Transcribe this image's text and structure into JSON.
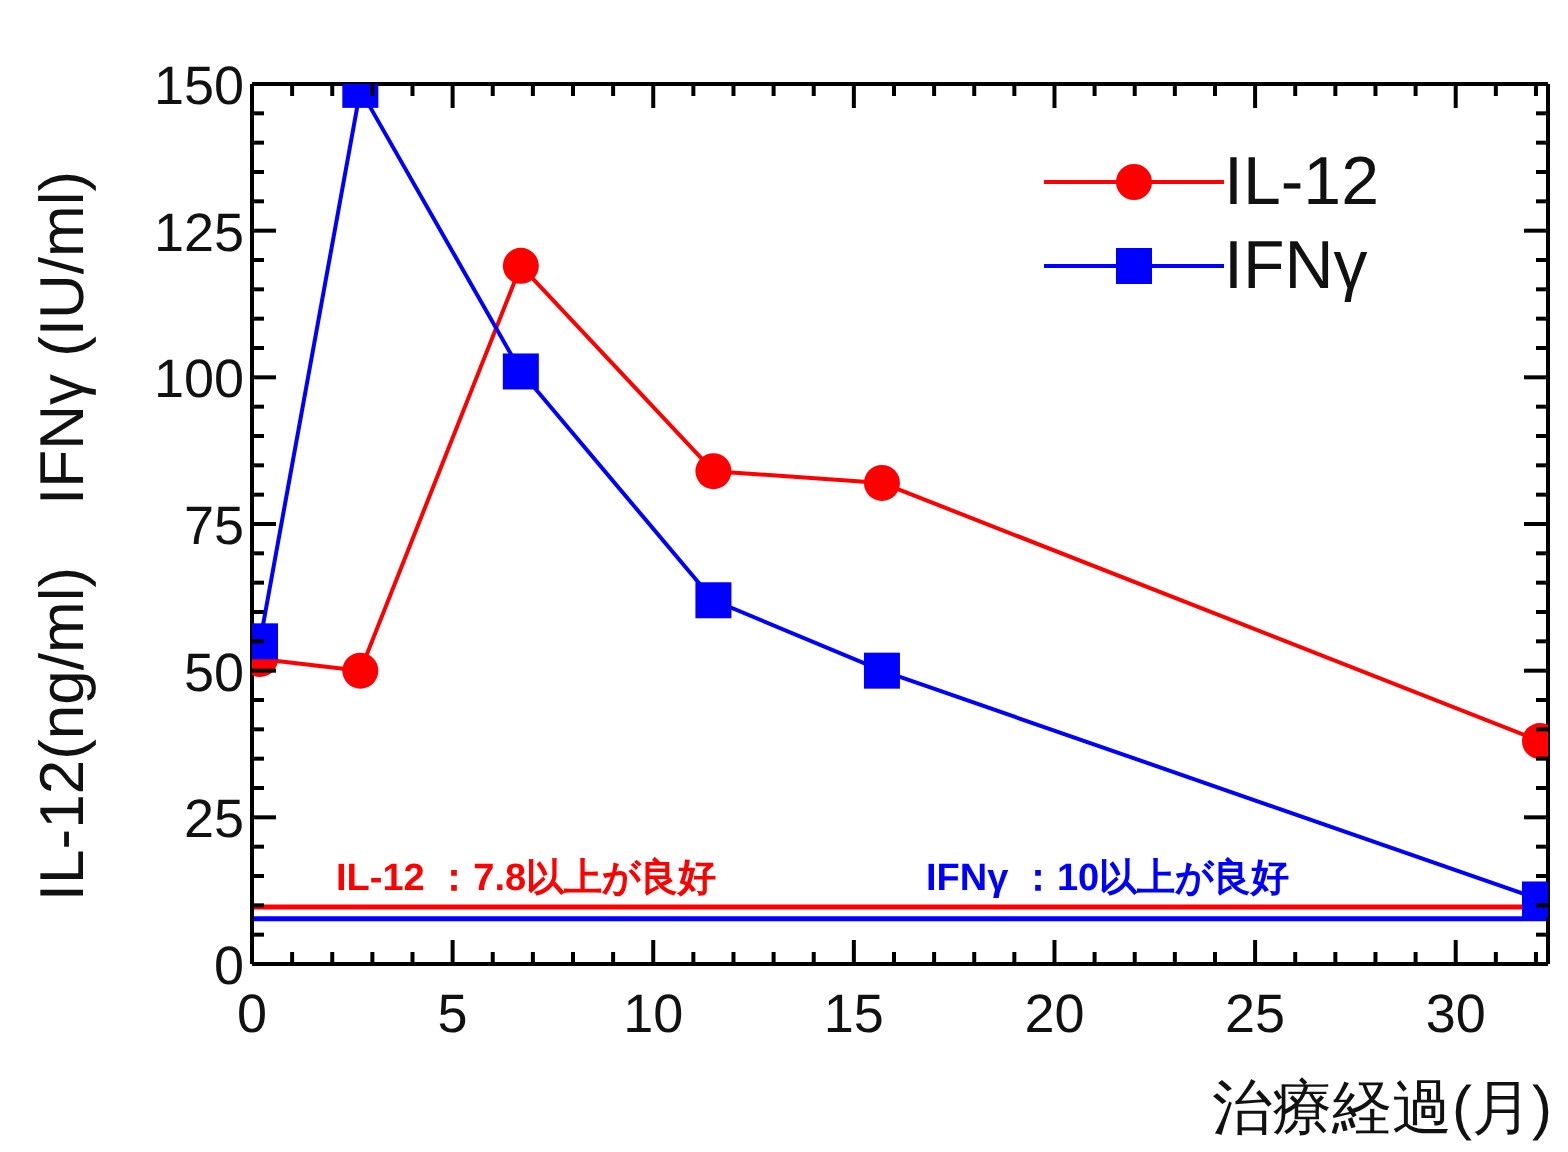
{
  "chart_data": {
    "type": "line",
    "xlabel": "治療経過(月)",
    "ylabel": "IL-12(ng/ml)　IFNγ (IU/ml)",
    "series": [
      {
        "name": "IL-12",
        "color": "#ff0000",
        "marker": "circle",
        "x": [
          0.2,
          2.7,
          6.7,
          11.5,
          15.7,
          32.1
        ],
        "values": [
          52,
          50,
          119,
          84,
          82,
          38
        ]
      },
      {
        "name": "IFNγ",
        "color": "#0000ff",
        "marker": "square",
        "x": [
          0.2,
          2.7,
          6.7,
          11.5,
          15.7,
          32.1
        ],
        "values": [
          55,
          149,
          101,
          62,
          50,
          11
        ]
      }
    ],
    "xlim": [
      0,
      32.3
    ],
    "xticks": [
      0,
      {
        "value": 1,
        "label": null
      },
      {
        "value": 2,
        "label": null
      },
      {
        "value": 3,
        "label": null
      },
      {
        "value": 4,
        "label": null
      },
      5,
      {
        "value": 6,
        "label": null
      },
      {
        "value": 7,
        "label": null
      },
      {
        "value": 8,
        "label": null
      },
      {
        "value": 9,
        "label": null
      },
      10,
      {
        "value": 11,
        "label": null
      },
      {
        "value": 12,
        "label": null
      },
      {
        "value": 13,
        "label": null
      },
      {
        "value": 14,
        "label": null
      },
      15,
      {
        "value": 16,
        "label": null
      },
      {
        "value": 17,
        "label": null
      },
      {
        "value": 18,
        "label": null
      },
      {
        "value": 19,
        "label": null
      },
      20,
      {
        "value": 21,
        "label": null
      },
      {
        "value": 22,
        "label": null
      },
      {
        "value": 23,
        "label": null
      },
      {
        "value": 24,
        "label": null
      },
      25,
      {
        "value": 26,
        "label": null
      },
      {
        "value": 27,
        "label": null
      },
      {
        "value": 28,
        "label": null
      },
      {
        "value": 29,
        "label": null
      },
      30,
      {
        "value": 31,
        "label": null
      },
      {
        "value": 32,
        "label": null
      }
    ],
    "ylim": [
      0,
      150
    ],
    "yticks": [
      0,
      {
        "value": 5,
        "label": null
      },
      {
        "value": 10,
        "label": null
      },
      {
        "value": 15,
        "label": null
      },
      {
        "value": 20,
        "label": null
      },
      25,
      {
        "value": 30,
        "label": null
      },
      {
        "value": 35,
        "label": null
      },
      {
        "value": 40,
        "label": null
      },
      {
        "value": 45,
        "label": null
      },
      50,
      {
        "value": 55,
        "label": null
      },
      {
        "value": 60,
        "label": null
      },
      {
        "value": 65,
        "label": null
      },
      {
        "value": 70,
        "label": null
      },
      75,
      {
        "value": 80,
        "label": null
      },
      {
        "value": 85,
        "label": null
      },
      {
        "value": 90,
        "label": null
      },
      {
        "value": 95,
        "label": null
      },
      100,
      {
        "value": 105,
        "label": null
      },
      {
        "value": 110,
        "label": null
      },
      {
        "value": 115,
        "label": null
      },
      {
        "value": 120,
        "label": null
      },
      125,
      {
        "value": 130,
        "label": null
      },
      {
        "value": 135,
        "label": null
      },
      {
        "value": 140,
        "label": null
      },
      {
        "value": 145,
        "label": null
      },
      150
    ],
    "ref_lines": [
      {
        "axis": "y",
        "value": 9.7,
        "color": "#ff0000"
      },
      {
        "axis": "y",
        "value": 7.7,
        "color": "#0000ff"
      }
    ],
    "annotations": [
      "IL-12 ：7.8以上が良好",
      "IFNγ ：10以上が良好"
    ],
    "legend": "top right",
    "grid": false
  }
}
